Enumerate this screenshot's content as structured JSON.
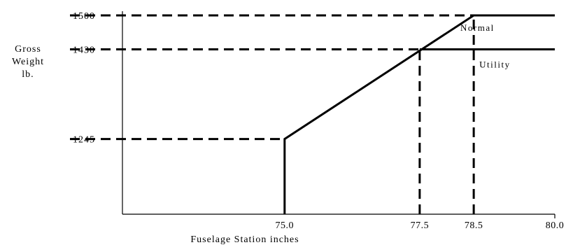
{
  "chart_data": {
    "type": "line",
    "title": "",
    "xlabel": "Fuselage Station inches",
    "ylabel": [
      "Gross",
      "Weight",
      "lb."
    ],
    "xlim": [
      72.0,
      80.0
    ],
    "ylim": [
      1090,
      1500
    ],
    "xticks": [
      "75.0",
      "77.5",
      "78.5",
      "80.0"
    ],
    "yticks": [
      "1500",
      "1430",
      "1245"
    ],
    "xtick_values": [
      75.0,
      77.5,
      78.5,
      80.0
    ],
    "ytick_values": [
      1500,
      1430,
      1245
    ],
    "series": [
      {
        "name": "Normal",
        "points": [
          [
            75.0,
            1090
          ],
          [
            75.0,
            1245
          ],
          [
            78.5,
            1500
          ],
          [
            80.0,
            1500
          ]
        ]
      },
      {
        "name": "Utility",
        "points": [
          [
            77.5,
            1430
          ],
          [
            80.0,
            1430
          ]
        ]
      }
    ],
    "reference_lines": [
      {
        "kind": "horizontal",
        "y": 1500,
        "x_from": 72.0,
        "x_to": 78.5
      },
      {
        "kind": "horizontal",
        "y": 1430,
        "x_from": 72.0,
        "x_to": 77.5
      },
      {
        "kind": "horizontal",
        "y": 1245,
        "x_from": 72.0,
        "x_to": 75.0
      },
      {
        "kind": "vertical",
        "x": 77.5,
        "y_from": 1090,
        "y_to": 1430
      },
      {
        "kind": "vertical",
        "x": 78.5,
        "y_from": 1090,
        "y_to": 1500
      }
    ],
    "grid": false,
    "legend": "none"
  }
}
